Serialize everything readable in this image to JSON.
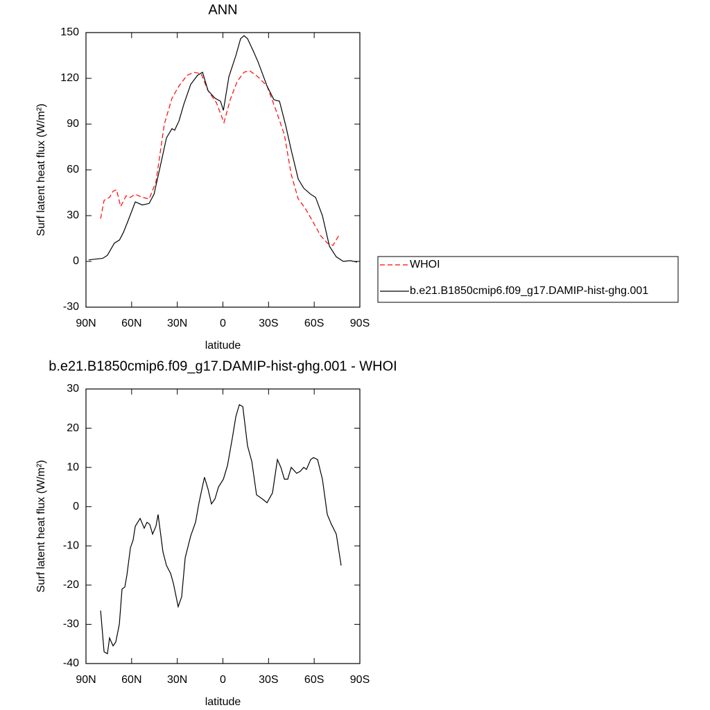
{
  "chart_data": [
    {
      "type": "line",
      "title": "ANN",
      "xlabel": "latitude",
      "ylabel": "Surf latent heat flux (W/m²)",
      "xlim": [
        90,
        -90
      ],
      "xticks": [
        {
          "value": 90,
          "label": "90N"
        },
        {
          "value": 60,
          "label": "60N"
        },
        {
          "value": 30,
          "label": "30N"
        },
        0,
        {
          "value": -30,
          "label": "30S"
        },
        {
          "value": -60,
          "label": "60S"
        },
        {
          "value": -90,
          "label": "90S"
        }
      ],
      "ylim": [
        -30,
        150
      ],
      "yticks": [
        -30,
        0,
        30,
        60,
        90,
        120,
        150
      ],
      "legend": "right",
      "series": [
        {
          "name": "WHOI",
          "color": "#ff0000",
          "line_style": "dashed",
          "x": [
            80.4,
            78.1,
            74.5,
            72.2,
            69.9,
            67.2,
            63.6,
            60.8,
            57.6,
            53,
            48.5,
            44,
            38.5,
            33.5,
            28.9,
            23.5,
            18.9,
            14.3,
            9.8,
            4.3,
            -0.7,
            -4.8,
            -9.4,
            -13.9,
            -17.6,
            -23,
            -29,
            -34.9,
            -40.4,
            -44.9,
            -49.5,
            -54,
            -58.6,
            -64.1,
            -68.6,
            -72.3,
            -76.8
          ],
          "values": [
            28,
            40,
            42,
            46,
            47,
            36,
            43,
            42,
            44,
            42,
            41,
            52,
            90,
            107,
            115,
            122,
            124,
            123,
            112,
            104,
            91,
            106,
            118,
            124,
            125,
            121,
            115,
            99,
            83,
            57,
            41,
            35,
            27,
            17,
            12,
            10.5,
            18
          ]
        },
        {
          "name": "b.e21.B1850cmip6.f09_g17.DAMIP-hist-ghg.001",
          "color": "#000000",
          "line_style": "solid",
          "x": [
            88.2,
            79,
            75.9,
            71.3,
            68,
            65.4,
            62.2,
            57.6,
            53,
            48.5,
            45.3,
            41.7,
            37.1,
            33.5,
            31.7,
            28.9,
            25.7,
            21.2,
            16.7,
            13.4,
            9.8,
            5.2,
            1.6,
            -0.3,
            -3.9,
            -8.5,
            -11.6,
            -13.9,
            -16.2,
            -19.9,
            -23,
            -29,
            -33.5,
            -37.2,
            -41.3,
            -44.9,
            -49.5,
            -53.1,
            -57.7,
            -60.9,
            -65.4,
            -70,
            -74.5,
            -79.1,
            -83.7,
            -88.2
          ],
          "values": [
            1,
            2,
            4,
            12,
            14,
            19,
            27,
            39,
            37,
            38,
            44,
            60,
            81,
            87,
            86,
            92,
            103,
            116,
            122,
            124,
            112,
            107,
            105,
            99,
            121,
            135,
            146,
            148,
            146,
            138,
            131,
            115,
            106,
            105,
            89,
            73,
            54,
            48,
            44,
            42,
            30,
            10,
            3,
            0,
            0.5,
            -0.5
          ]
        }
      ]
    },
    {
      "type": "line",
      "title": "b.e21.B1850cmip6.f09_g17.DAMIP-hist-ghg.001 - WHOI",
      "xlabel": "latitude",
      "ylabel": "Surf latent heat flux (W/m²)",
      "xlim": [
        90,
        -90
      ],
      "xticks": [
        {
          "value": 90,
          "label": "90N"
        },
        {
          "value": 60,
          "label": "60N"
        },
        {
          "value": 30,
          "label": "30N"
        },
        0,
        {
          "value": -30,
          "label": "30S"
        },
        {
          "value": -60,
          "label": "60S"
        },
        {
          "value": -90,
          "label": "90S"
        }
      ],
      "ylim": [
        -40,
        30
      ],
      "yticks": [
        -40,
        -30,
        -20,
        -10,
        0,
        10,
        20,
        30
      ],
      "series": [
        {
          "color": "#000000",
          "line_style": "solid",
          "x": [
            80.4,
            78.1,
            75.9,
            74.5,
            72.2,
            70.4,
            68.1,
            66.3,
            64.5,
            63.1,
            60.8,
            59,
            57.6,
            54.4,
            51.7,
            49.9,
            48.1,
            46.2,
            44,
            42.6,
            39.4,
            37.1,
            34.4,
            32.6,
            29.4,
            27.1,
            24.8,
            21.2,
            18,
            15.7,
            12.1,
            9.8,
            7.5,
            5.2,
            2.9,
            -0.3,
            -3,
            -6.2,
            -8.5,
            -10.8,
            -13.1,
            -16.2,
            -19,
            -22.1,
            -25.8,
            -29,
            -32.6,
            -35.8,
            -38.1,
            -40.4,
            -42.6,
            -44.9,
            -48.5,
            -50.8,
            -53.1,
            -54.9,
            -57.7,
            -59.5,
            -62.2,
            -65.4,
            -68.6,
            -71.3,
            -74.5,
            -77.7
          ],
          "values": [
            -26.5,
            -37,
            -37.5,
            -33.5,
            -35.5,
            -34.5,
            -30,
            -21,
            -20.5,
            -17.5,
            -10.5,
            -8.5,
            -5,
            -3,
            -5.5,
            -4,
            -4.5,
            -7,
            -5,
            -2,
            -11.5,
            -15,
            -17,
            -19.5,
            -25.5,
            -23,
            -13,
            -7.5,
            -4,
            1,
            7.5,
            4.5,
            0.7,
            2,
            5,
            7,
            10.5,
            17.5,
            23,
            26,
            25.5,
            15.5,
            11.5,
            3,
            2,
            1,
            3.5,
            12,
            10,
            7,
            7,
            10,
            8.5,
            9,
            10,
            9.5,
            12,
            12.5,
            12,
            7,
            -2,
            -4.5,
            -7,
            -15
          ]
        }
      ]
    }
  ]
}
